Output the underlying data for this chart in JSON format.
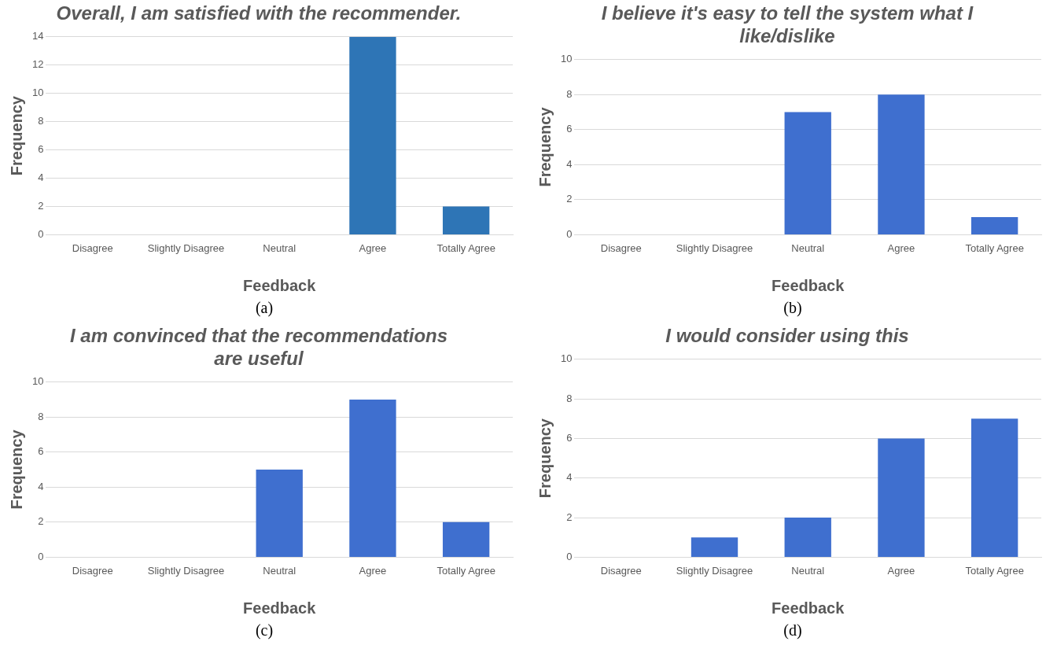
{
  "chart_data": [
    {
      "type": "bar",
      "title": "Overall, I am satisfied with the recommender.",
      "xlabel": "Feedback",
      "ylabel": "Frequency",
      "categories": [
        "Disagree",
        "Slightly Disagree",
        "Neutral",
        "Agree",
        "Totally Agree"
      ],
      "values": [
        0,
        0,
        0,
        14,
        2
      ],
      "color": "#2e75b6",
      "ylim": [
        0,
        14
      ],
      "yticks": [
        0,
        2,
        4,
        6,
        8,
        10,
        12,
        14
      ],
      "grid": "y",
      "annotations": [
        "(a)"
      ]
    },
    {
      "type": "bar",
      "title": "I believe it's easy to tell the system what I like/dislike",
      "xlabel": "Feedback",
      "ylabel": "Frequency",
      "categories": [
        "Disagree",
        "Slightly Disagree",
        "Neutral",
        "Agree",
        "Totally Agree"
      ],
      "values": [
        0,
        0,
        7,
        8,
        1
      ],
      "color": "#3f6fcf",
      "ylim": [
        0,
        10
      ],
      "yticks": [
        0,
        2,
        4,
        6,
        8,
        10
      ],
      "grid": "y",
      "annotations": [
        "(b)"
      ]
    },
    {
      "type": "bar",
      "title": "I am convinced that the recommendations are useful",
      "xlabel": "Feedback",
      "ylabel": "Frequency",
      "categories": [
        "Disagree",
        "Slightly Disagree",
        "Neutral",
        "Agree",
        "Totally Agree"
      ],
      "values": [
        0,
        0,
        5,
        9,
        2
      ],
      "color": "#3f6fcf",
      "ylim": [
        0,
        10
      ],
      "yticks": [
        0,
        2,
        4,
        6,
        8,
        10
      ],
      "grid": "y",
      "annotations": [
        "(c)"
      ]
    },
    {
      "type": "bar",
      "title": "I would consider using this",
      "xlabel": "Feedback",
      "ylabel": "Frequency",
      "categories": [
        "Disagree",
        "Slightly Disagree",
        "Neutral",
        "Agree",
        "Totally Agree"
      ],
      "values": [
        0,
        1,
        2,
        6,
        7
      ],
      "color": "#3f6fcf",
      "ylim": [
        0,
        10
      ],
      "yticks": [
        0,
        2,
        4,
        6,
        8,
        10
      ],
      "grid": "y",
      "annotations": [
        "(d)"
      ]
    }
  ]
}
